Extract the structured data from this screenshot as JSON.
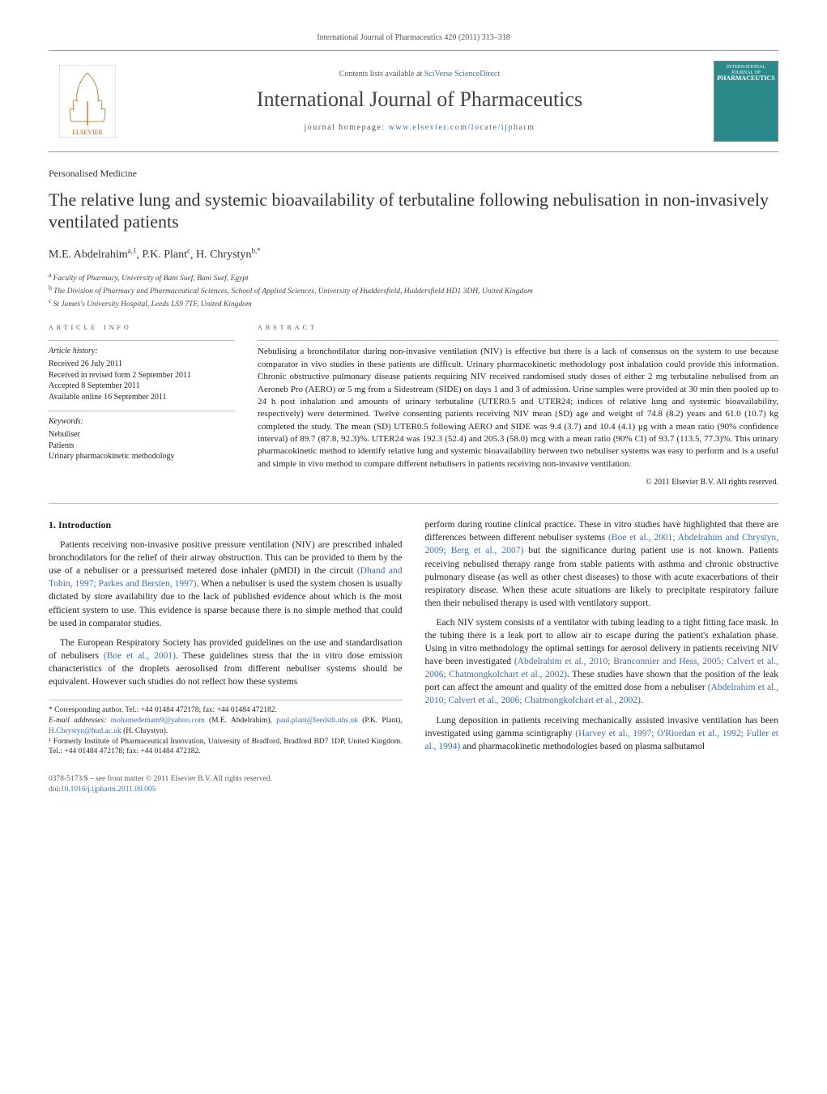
{
  "header_citation": "International Journal of Pharmaceutics 420 (2011) 313–318",
  "banner": {
    "contents_prefix": "Contents lists available at ",
    "contents_link": "SciVerse ScienceDirect",
    "journal": "International Journal of Pharmaceutics",
    "homepage_prefix": "journal homepage: ",
    "homepage_link": "www.elsevier.com/locate/ijpharm",
    "publisher_label": "ELSEVIER",
    "cover_label_top": "INTERNATIONAL JOURNAL OF",
    "cover_label_main": "PHARMACEUTICS"
  },
  "section_label": "Personalised Medicine",
  "title": "The relative lung and systemic bioavailability of terbutaline following nebulisation in non-invasively ventilated patients",
  "authors_html": "M.E. Abdelrahim",
  "authors": [
    {
      "name": "M.E. Abdelrahim",
      "sup": "a,1"
    },
    {
      "name": "P.K. Plant",
      "sup": "c"
    },
    {
      "name": "H. Chrystyn",
      "sup": "b,*"
    }
  ],
  "affiliations": [
    {
      "sup": "a",
      "text": "Faculty of Pharmacy, University of Bani Suef, Bani Suef, Egypt"
    },
    {
      "sup": "b",
      "text": "The Division of Pharmacy and Pharmaceutical Sciences, School of Applied Sciences, University of Huddersfield, Huddersfield HD1 3DH, United Kingdom"
    },
    {
      "sup": "c",
      "text": "St James's University Hospital, Leeds LS9 7TF, United Kingdom"
    }
  ],
  "info": {
    "heading": "article info",
    "history_title": "Article history:",
    "history": [
      "Received 26 July 2011",
      "Received in revised form 2 September 2011",
      "Accepted 8 September 2011",
      "Available online 16 September 2011"
    ],
    "keywords_title": "Keywords:",
    "keywords": [
      "Nebuliser",
      "Patients",
      "Urinary pharmacokinetic methodology"
    ]
  },
  "abstract": {
    "heading": "abstract",
    "body": "Nebulising a bronchodilator during non-invasive ventilation (NIV) is effective but there is a lack of consensus on the system to use because comparator in vivo studies in these patients are difficult. Urinary pharmacokinetic methodology post inhalation could provide this information. Chronic obstructive pulmonary disease patients requiring NIV received randomised study doses of either 2 mg terbutaline nebulised from an Aeroneb Pro (AERO) or 5 mg from a Sidestream (SIDE) on days 1 and 3 of admission. Urine samples were provided at 30 min then pooled up to 24 h post inhalation and amounts of urinary terbutaline (UTER0.5 and UTER24; indices of relative lung and systemic bioavailability, respectively) were determined. Twelve consenting patients receiving NIV mean (SD) age and weight of 74.8 (8.2) years and 61.0 (10.7) kg completed the study. The mean (SD) UTER0.5 following AERO and SIDE was 9.4 (3.7) and 10.4 (4.1) µg with a mean ratio (90% confidence interval) of 89.7 (87.8, 92.3)%. UTER24 was 192.3 (52.4) and 205.3 (58.0) mcg with a mean ratio (90% CI) of 93.7 (113.5, 77.3)%. This urinary pharmacokinetic method to identify relative lung and systemic bioavailability between two nebuliser systems was easy to perform and is a useful and simple in vivo method to compare different nebulisers in patients receiving non-invasive ventilation.",
    "copyright": "© 2011 Elsevier B.V. All rights reserved."
  },
  "body": {
    "intro_heading": "1.  Introduction",
    "left_paras": [
      "Patients receiving non-invasive positive pressure ventilation (NIV) are prescribed inhaled bronchodilators for the relief of their airway obstruction. This can be provided to them by the use of a nebuliser or a pressurised metered dose inhaler (pMDI) in the circuit (Dhand and Tobin, 1997; Parkes and Bersten, 1997). When a nebuliser is used the system chosen is usually dictated by store availability due to the lack of published evidence about which is the most efficient system to use. This evidence is sparse because there is no simple method that could be used in comparator studies.",
      "The European Respiratory Society has provided guidelines on the use and standardisation of nebulisers (Boe et al., 2001). These guidelines stress that the in vitro dose emission characteristics of the droplets aerosolised from different nebuliser systems should be equivalent. However such studies do not reflect how these systems"
    ],
    "right_paras": [
      "perform during routine clinical practice. These in vitro studies have highlighted that there are differences between different nebuliser systems (Boe et al., 2001; Abdelrahim and Chrystyn, 2009; Berg et al., 2007) but the significance during patient use is not known. Patients receiving nebulised therapy range from stable patients with asthma and chronic obstructive pulmonary disease (as well as other chest diseases) to those with acute exacerbations of their respiratory disease. When these acute situations are likely to precipitate respiratory failure then their nebulised therapy is used with ventilatory support.",
      "Each NIV system consists of a ventilator with tubing leading to a tight fitting face mask. In the tubing there is a leak port to allow air to escape during the patient's exhalation phase. Using in vitro methodology the optimal settings for aerosol delivery in patients receiving NIV have been investigated (Abdelrahim et al., 2010; Branconnier and Hess, 2005; Calvert et al., 2006; Chatmongkolchart et al., 2002). These studies have shown that the position of the leak port can affect the amount and quality of the emitted dose from a nebuliser (Abdelrahim et al., 2010; Calvert et al., 2006; Chatmongkolchart et al., 2002).",
      "Lung deposition in patients receiving mechanically assisted invasive ventilation has been investigated using gamma scintigraphy (Harvey et al., 1997; O'Riordan et al., 1992; Fuller et al., 1994) and pharmacokinetic methodologies based on plasma salbutamol"
    ]
  },
  "footnotes": {
    "corr": "* Corresponding author. Tel.: +44 01484 472178; fax: +44 01484 472182.",
    "email_label": "E-mail addresses: ",
    "emails": [
      {
        "addr": "mohamedemam9@yahoo.com",
        "who": "(M.E. Abdelrahim),"
      },
      {
        "addr": "paul.plant@leedsth.nhs.uk",
        "who": "(P.K. Plant),"
      },
      {
        "addr": "H.Chrystyn@hud.ac.uk",
        "who": "(H. Chrystyn)."
      }
    ],
    "note1": "¹ Formerly Institute of Pharmaceutical Innovation, University of Bradford, Bradford BD7 1DP, United Kingdom. Tel.: +44 01484 472178; fax: +44 01484 472182."
  },
  "bottom": {
    "issn": "0378-5173/$ – see front matter © 2011 Elsevier B.V. All rights reserved.",
    "doi_prefix": "doi:",
    "doi": "10.1016/j.ijpharm.2011.09.005"
  },
  "colors": {
    "link": "#3a6fb7",
    "rule": "#bbbbbb",
    "cover_bg": "#2a8a8a"
  }
}
